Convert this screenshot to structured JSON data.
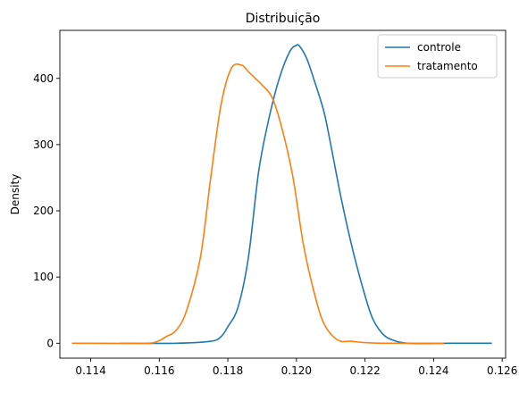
{
  "chart_data": {
    "type": "line",
    "title": "Distribuição",
    "xlabel": "",
    "ylabel": "Density",
    "xlim": [
      0.1131,
      0.1261
    ],
    "ylim": [
      -22.5,
      472.5
    ],
    "xticks": [
      0.114,
      0.116,
      0.118,
      0.12,
      0.122,
      0.124,
      0.126
    ],
    "xtick_labels": [
      "0.114",
      "0.116",
      "0.118",
      "0.120",
      "0.122",
      "0.124",
      "0.126"
    ],
    "yticks": [
      0,
      100,
      200,
      300,
      400
    ],
    "ytick_labels": [
      "0",
      "100",
      "200",
      "300",
      "400"
    ],
    "grid": false,
    "legend_position": "top-right",
    "series": [
      {
        "name": "controle",
        "color": "#1f77b4",
        "x": [
          0.11485,
          0.1165,
          0.1175,
          0.1178,
          0.118,
          0.1183,
          0.1186,
          0.1189,
          0.1192,
          0.1195,
          0.1198,
          0.12,
          0.1201,
          0.1203,
          0.1205,
          0.1208,
          0.121,
          0.1213,
          0.1216,
          0.1219,
          0.1222,
          0.1225,
          0.1228,
          0.1233,
          0.1245,
          0.1257
        ],
        "y": [
          0,
          0,
          3,
          10,
          25,
          55,
          130,
          260,
          340,
          400,
          440,
          450,
          448,
          430,
          400,
          350,
          300,
          220,
          150,
          90,
          40,
          15,
          5,
          0,
          0,
          0
        ]
      },
      {
        "name": "tratamento",
        "color": "#ff7f0e",
        "x": [
          0.11345,
          0.1155,
          0.1159,
          0.1162,
          0.1165,
          0.1168,
          0.1172,
          0.1175,
          0.1178,
          0.1181,
          0.1184,
          0.1186,
          0.1188,
          0.119,
          0.1193,
          0.1196,
          0.1199,
          0.1202,
          0.1205,
          0.1208,
          0.1212,
          0.1216,
          0.122,
          0.1225,
          0.1235,
          0.1243
        ],
        "y": [
          0,
          0,
          2,
          10,
          20,
          50,
          130,
          250,
          360,
          415,
          420,
          410,
          400,
          390,
          370,
          320,
          250,
          150,
          80,
          30,
          5,
          3,
          1,
          0,
          0,
          0
        ]
      }
    ]
  }
}
